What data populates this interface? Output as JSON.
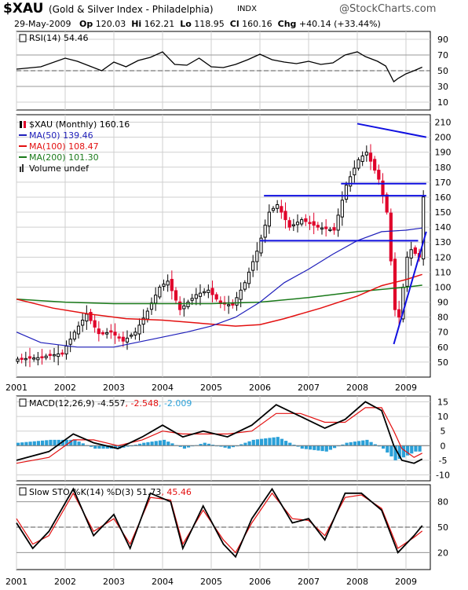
{
  "header": {
    "symbol": "$XAU",
    "name": "(Gold & Silver Index - Philadelphia)",
    "exchange": "INDX",
    "brand": "@StockCharts.com",
    "date": "29-May-2009",
    "open_label": "Op",
    "open": "120.03",
    "high_label": "Hi",
    "high": "162.21",
    "low_label": "Lo",
    "low": "118.95",
    "close_label": "Cl",
    "close": "160.16",
    "chg_label": "Chg",
    "chg": "+40.14 (+33.44%)",
    "chg_arrow": "▲"
  },
  "colors": {
    "up_candle": "#000000",
    "down_candle": "#e0002a",
    "ma50": "#1f1fbb",
    "ma100": "#e31010",
    "ma200": "#1a7a1a",
    "trendline": "#1010e0",
    "histogram": "#2aa0d8",
    "grid": "#cfcfcf",
    "signal": "#e31010",
    "main_line": "#000000"
  },
  "chart_data": [
    {
      "panel": "rsi",
      "type": "line",
      "label": "RSI(14) 54.46",
      "y_ticks": [
        90,
        70,
        50,
        30,
        10
      ],
      "ylim": [
        0,
        100
      ],
      "reference_lines": [
        70,
        50,
        30
      ],
      "x": [
        "2001-01",
        "2001-07",
        "2002-01",
        "2002-04",
        "2002-07",
        "2002-10",
        "2003-01",
        "2003-04",
        "2003-07",
        "2003-10",
        "2004-01",
        "2004-04",
        "2004-07",
        "2004-10",
        "2005-01",
        "2005-04",
        "2005-07",
        "2005-10",
        "2006-01",
        "2006-04",
        "2006-07",
        "2006-10",
        "2007-01",
        "2007-04",
        "2007-07",
        "2007-10",
        "2008-01",
        "2008-03",
        "2008-06",
        "2008-08",
        "2008-10",
        "2008-11",
        "2009-01",
        "2009-03",
        "2009-05"
      ],
      "values": [
        52,
        55,
        66,
        62,
        56,
        50,
        61,
        55,
        63,
        67,
        74,
        58,
        57,
        66,
        55,
        54,
        58,
        64,
        71,
        64,
        61,
        59,
        62,
        58,
        60,
        70,
        74,
        68,
        62,
        56,
        36,
        40,
        46,
        50,
        54.46
      ]
    },
    {
      "panel": "price",
      "type": "candlestick",
      "legend": [
        {
          "key": "main",
          "text": "$XAU (Monthly) 160.16"
        },
        {
          "key": "ma50",
          "text": "MA(50) 139.46"
        },
        {
          "key": "ma100",
          "text": "MA(100) 108.47"
        },
        {
          "key": "ma200",
          "text": "MA(200) 101.30"
        },
        {
          "key": "volume",
          "text": "Volume undef"
        }
      ],
      "y_ticks": [
        210,
        200,
        190,
        180,
        170,
        160,
        150,
        140,
        130,
        120,
        110,
        100,
        90,
        80,
        70,
        60,
        50
      ],
      "ylim": [
        40,
        215
      ],
      "x_ticks": [
        "2001",
        "2002",
        "2003",
        "2004",
        "2005",
        "2006",
        "2007",
        "2008",
        "2009"
      ],
      "x_range": [
        "2001-01",
        "2009-06"
      ],
      "close_path": [
        [
          "2001-01",
          52
        ],
        [
          "2001-06",
          53
        ],
        [
          "2001-12",
          56
        ],
        [
          "2002-03",
          70
        ],
        [
          "2002-06",
          82
        ],
        [
          "2002-09",
          69
        ],
        [
          "2002-12",
          70
        ],
        [
          "2003-03",
          64
        ],
        [
          "2003-06",
          70
        ],
        [
          "2003-09",
          84
        ],
        [
          "2003-12",
          100
        ],
        [
          "2004-02",
          104
        ],
        [
          "2004-05",
          85
        ],
        [
          "2004-09",
          95
        ],
        [
          "2004-12",
          98
        ],
        [
          "2005-03",
          89
        ],
        [
          "2005-06",
          88
        ],
        [
          "2005-09",
          103
        ],
        [
          "2005-12",
          124
        ],
        [
          "2006-03",
          150
        ],
        [
          "2006-05",
          155
        ],
        [
          "2006-08",
          140
        ],
        [
          "2006-11",
          145
        ],
        [
          "2007-03",
          140
        ],
        [
          "2007-07",
          138
        ],
        [
          "2007-10",
          168
        ],
        [
          "2008-01",
          185
        ],
        [
          "2008-03",
          190
        ],
        [
          "2008-06",
          172
        ],
        [
          "2008-08",
          150
        ],
        [
          "2008-10",
          85
        ],
        [
          "2008-11",
          80
        ],
        [
          "2009-01",
          120
        ],
        [
          "2009-02",
          125
        ],
        [
          "2009-04",
          120
        ],
        [
          "2009-05",
          160.16
        ]
      ],
      "ma50": [
        [
          "2001-01",
          70
        ],
        [
          "2001-07",
          63
        ],
        [
          "2002-04",
          60
        ],
        [
          "2003-01",
          60
        ],
        [
          "2003-10",
          65
        ],
        [
          "2004-07",
          70
        ],
        [
          "2005-01",
          74
        ],
        [
          "2005-07",
          80
        ],
        [
          "2006-01",
          90
        ],
        [
          "2006-07",
          103
        ],
        [
          "2007-01",
          112
        ],
        [
          "2007-07",
          122
        ],
        [
          "2008-01",
          131
        ],
        [
          "2008-07",
          137
        ],
        [
          "2009-01",
          138
        ],
        [
          "2009-05",
          139.46
        ]
      ],
      "ma100": [
        [
          "2001-01",
          92
        ],
        [
          "2001-10",
          86
        ],
        [
          "2002-07",
          82
        ],
        [
          "2003-04",
          79
        ],
        [
          "2004-01",
          78
        ],
        [
          "2004-10",
          76
        ],
        [
          "2005-07",
          74
        ],
        [
          "2006-01",
          75
        ],
        [
          "2006-07",
          79
        ],
        [
          "2007-04",
          86
        ],
        [
          "2008-01",
          94
        ],
        [
          "2008-07",
          101
        ],
        [
          "2009-01",
          105
        ],
        [
          "2009-05",
          108.47
        ]
      ],
      "ma200": [
        [
          "2001-01",
          92
        ],
        [
          "2002-01",
          90
        ],
        [
          "2003-01",
          89
        ],
        [
          "2004-01",
          89
        ],
        [
          "2005-01",
          89
        ],
        [
          "2006-01",
          90
        ],
        [
          "2007-01",
          93
        ],
        [
          "2008-01",
          97
        ],
        [
          "2009-01",
          100
        ],
        [
          "2009-05",
          101.3
        ]
      ],
      "horizontal_lines": [
        {
          "y": 169,
          "from": "2007-09",
          "to": "2009-06"
        },
        {
          "y": 161,
          "from": "2006-02",
          "to": "2009-06"
        },
        {
          "y": 131,
          "from": "2006-01",
          "to": "2009-04"
        }
      ],
      "trendlines": [
        {
          "from": [
            "2008-01",
            209
          ],
          "to": [
            "2009-06",
            200
          ]
        },
        {
          "from": [
            "2008-10",
            62
          ],
          "to": [
            "2009-06",
            137
          ]
        }
      ]
    },
    {
      "panel": "macd",
      "type": "line",
      "label": "MACD(12,26,9) -4.557, -2.548, -2.009",
      "label_parts": [
        "MACD(12,26,9) -4.557",
        ", -2.548",
        ", -2.009"
      ],
      "y_ticks": [
        15,
        10,
        5,
        0,
        -5,
        -10
      ],
      "ylim": [
        -12,
        17
      ],
      "series": [
        {
          "role": "macd",
          "points": [
            [
              "2001-01",
              -5
            ],
            [
              "2001-09",
              -2
            ],
            [
              "2002-03",
              4
            ],
            [
              "2002-08",
              1
            ],
            [
              "2003-02",
              -1
            ],
            [
              "2003-08",
              3
            ],
            [
              "2004-01",
              7
            ],
            [
              "2004-06",
              3
            ],
            [
              "2004-11",
              5
            ],
            [
              "2005-05",
              3
            ],
            [
              "2005-11",
              7
            ],
            [
              "2006-05",
              14
            ],
            [
              "2006-11",
              10
            ],
            [
              "2007-05",
              6
            ],
            [
              "2007-10",
              9
            ],
            [
              "2008-03",
              15
            ],
            [
              "2008-07",
              12
            ],
            [
              "2008-10",
              0
            ],
            [
              "2008-12",
              -5
            ],
            [
              "2009-03",
              -6
            ],
            [
              "2009-05",
              -4.557
            ]
          ]
        },
        {
          "role": "signal",
          "points": [
            [
              "2001-01",
              -6
            ],
            [
              "2001-09",
              -4
            ],
            [
              "2002-03",
              2
            ],
            [
              "2002-08",
              2
            ],
            [
              "2003-02",
              0
            ],
            [
              "2003-08",
              2
            ],
            [
              "2004-01",
              5
            ],
            [
              "2004-06",
              4
            ],
            [
              "2004-11",
              4
            ],
            [
              "2005-05",
              4
            ],
            [
              "2005-11",
              5
            ],
            [
              "2006-05",
              11
            ],
            [
              "2006-11",
              11
            ],
            [
              "2007-05",
              8
            ],
            [
              "2007-10",
              8
            ],
            [
              "2008-03",
              13
            ],
            [
              "2008-07",
              13
            ],
            [
              "2008-10",
              5
            ],
            [
              "2008-12",
              -1
            ],
            [
              "2009-03",
              -4
            ],
            [
              "2009-05",
              -2.548
            ]
          ]
        },
        {
          "role": "histogram",
          "points": [
            [
              "2001-01",
              1
            ],
            [
              "2001-09",
              2
            ],
            [
              "2002-03",
              2
            ],
            [
              "2002-08",
              -1
            ],
            [
              "2003-02",
              -1
            ],
            [
              "2003-08",
              1
            ],
            [
              "2004-01",
              2
            ],
            [
              "2004-06",
              -1
            ],
            [
              "2004-11",
              1
            ],
            [
              "2005-05",
              -1
            ],
            [
              "2005-11",
              2
            ],
            [
              "2006-05",
              3
            ],
            [
              "2006-11",
              -1
            ],
            [
              "2007-05",
              -2
            ],
            [
              "2007-10",
              1
            ],
            [
              "2008-03",
              2
            ],
            [
              "2008-07",
              -1
            ],
            [
              "2008-10",
              -5
            ],
            [
              "2008-12",
              -4
            ],
            [
              "2009-03",
              -2
            ],
            [
              "2009-05",
              -2.009
            ]
          ]
        }
      ]
    },
    {
      "panel": "stochastic",
      "type": "line",
      "label": "Slow STO %K(14) %D(3) 51.73, 45.46",
      "label_parts": [
        "Slow STO %K(14) %D(3) 51.73",
        ", 45.46"
      ],
      "y_ticks": [
        80,
        50,
        20
      ],
      "ylim": [
        0,
        100
      ],
      "reference_lines": [
        80,
        50,
        20
      ],
      "series": [
        {
          "role": "k",
          "points": [
            [
              "2001-01",
              55
            ],
            [
              "2001-05",
              25
            ],
            [
              "2001-09",
              45
            ],
            [
              "2002-03",
              95
            ],
            [
              "2002-08",
              40
            ],
            [
              "2003-01",
              65
            ],
            [
              "2003-05",
              25
            ],
            [
              "2003-10",
              90
            ],
            [
              "2004-03",
              80
            ],
            [
              "2004-06",
              25
            ],
            [
              "2004-11",
              75
            ],
            [
              "2005-04",
              30
            ],
            [
              "2005-07",
              15
            ],
            [
              "2005-11",
              60
            ],
            [
              "2006-04",
              95
            ],
            [
              "2006-09",
              55
            ],
            [
              "2007-01",
              60
            ],
            [
              "2007-05",
              35
            ],
            [
              "2007-10",
              90
            ],
            [
              "2008-02",
              90
            ],
            [
              "2008-07",
              70
            ],
            [
              "2008-11",
              20
            ],
            [
              "2009-03",
              40
            ],
            [
              "2009-05",
              51.73
            ]
          ]
        },
        {
          "role": "d",
          "points": [
            [
              "2001-01",
              60
            ],
            [
              "2001-05",
              30
            ],
            [
              "2001-09",
              40
            ],
            [
              "2002-03",
              90
            ],
            [
              "2002-08",
              45
            ],
            [
              "2003-01",
              60
            ],
            [
              "2003-05",
              30
            ],
            [
              "2003-10",
              85
            ],
            [
              "2004-03",
              82
            ],
            [
              "2004-06",
              30
            ],
            [
              "2004-11",
              70
            ],
            [
              "2005-04",
              35
            ],
            [
              "2005-07",
              20
            ],
            [
              "2005-11",
              55
            ],
            [
              "2006-04",
              90
            ],
            [
              "2006-09",
              60
            ],
            [
              "2007-01",
              58
            ],
            [
              "2007-05",
              40
            ],
            [
              "2007-10",
              85
            ],
            [
              "2008-02",
              88
            ],
            [
              "2008-07",
              72
            ],
            [
              "2008-11",
              25
            ],
            [
              "2009-03",
              38
            ],
            [
              "2009-05",
              45.46
            ]
          ]
        }
      ],
      "x_ticks": [
        "2001",
        "2002",
        "2003",
        "2004",
        "2005",
        "2006",
        "2007",
        "2008",
        "2009"
      ]
    }
  ]
}
